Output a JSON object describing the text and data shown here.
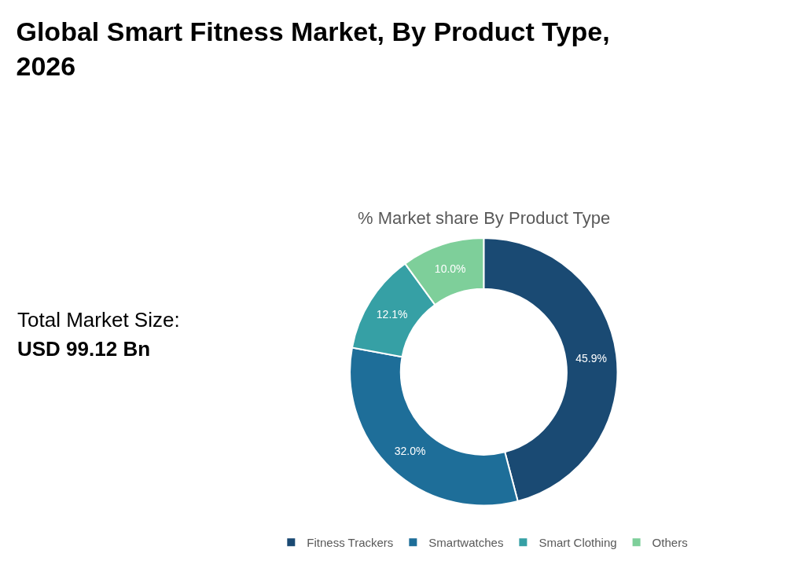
{
  "chart_data": {
    "type": "donut",
    "title": "Global Smart Fitness Market, By Product Type, 2026",
    "subtitle": "% Market share By Product Type",
    "categories": [
      "Fitness Trackers",
      "Smartwatches",
      "Smart Clothing",
      "Others"
    ],
    "values": [
      45.9,
      32.0,
      12.1,
      10.0
    ],
    "value_labels": [
      "45.9%",
      "32.0%",
      "12.1%",
      "10.0%"
    ],
    "colors": [
      "#1a4a73",
      "#1e6e99",
      "#36a0a5",
      "#7ecf9a"
    ],
    "annotations": [
      "Total Market Size:",
      "USD 99.12 Bn"
    ],
    "legend": "bottom"
  }
}
